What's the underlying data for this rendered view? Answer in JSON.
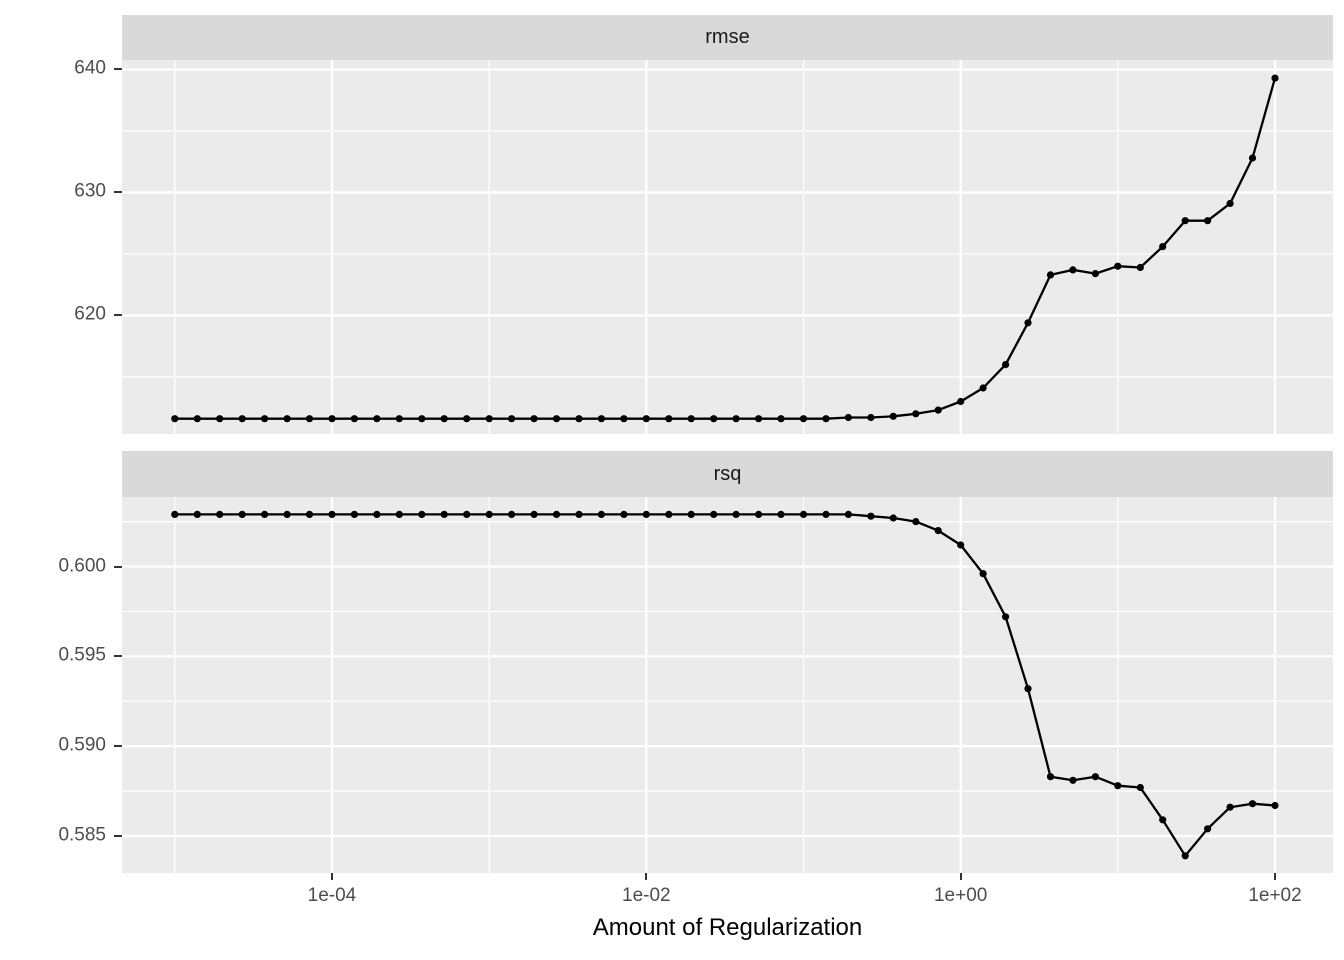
{
  "figure": {
    "kind": "ggplot2-faceted-line-chart",
    "x_axis": {
      "label": "Amount of Regularization",
      "scale": "log10",
      "tick_labels": [
        "1e-04",
        "1e-02",
        "1e+00",
        "1e+02"
      ],
      "tick_log10": [
        -4,
        -2,
        0,
        2
      ],
      "minor_log10": [
        -5,
        -3,
        -1,
        1
      ],
      "xlim_log10": [
        -5.336,
        2.369
      ]
    },
    "colors": {
      "background": "#FFFFFF",
      "panel_background": "#EBEBEB",
      "strip_background": "#D9D9D9",
      "gridline": "#FFFFFF",
      "series": "#000000",
      "tick_mark": "#333333",
      "tick_text": "#4D4D4D",
      "strip_text": "#1A1A1A",
      "axis_title_text": "#000000"
    },
    "legend": "none",
    "grid": "on"
  },
  "chart_data": [
    {
      "type": "line",
      "facet": "rmse",
      "x_transform": "log10",
      "x_log10": [
        -5,
        -4.8571,
        -4.7143,
        -4.5714,
        -4.4286,
        -4.2857,
        -4.1429,
        -4,
        -3.8571,
        -3.7143,
        -3.5714,
        -3.4286,
        -3.2857,
        -3.1429,
        -3,
        -2.8571,
        -2.7143,
        -2.5714,
        -2.4286,
        -2.2857,
        -2.1429,
        -2,
        -1.8571,
        -1.7143,
        -1.5714,
        -1.4286,
        -1.2857,
        -1.1429,
        -1,
        -0.8571,
        -0.7143,
        -0.5714,
        -0.4286,
        -0.2857,
        -0.1429,
        0,
        0.1429,
        0.2857,
        0.4286,
        0.5714,
        0.7143,
        0.8571,
        1,
        1.1429,
        1.2857,
        1.4286,
        1.5714,
        1.7143,
        1.8571,
        2
      ],
      "y": [
        611.6,
        611.6,
        611.6,
        611.6,
        611.6,
        611.6,
        611.6,
        611.6,
        611.6,
        611.6,
        611.6,
        611.6,
        611.6,
        611.6,
        611.6,
        611.6,
        611.6,
        611.6,
        611.6,
        611.6,
        611.6,
        611.6,
        611.6,
        611.6,
        611.6,
        611.6,
        611.6,
        611.6,
        611.6,
        611.6,
        611.7,
        611.7,
        611.8,
        612.0,
        612.3,
        613.0,
        614.1,
        616.0,
        619.4,
        623.3,
        623.7,
        623.4,
        624.0,
        623.9,
        625.6,
        627.7,
        627.7,
        629.1,
        632.8,
        639.3
      ],
      "ylim": [
        610.36,
        640.77
      ],
      "yticks": [
        620,
        630,
        640
      ],
      "ytick_labels": [
        "620",
        "630",
        "640"
      ],
      "yticks_minor": [
        615,
        625,
        635
      ]
    },
    {
      "type": "line",
      "facet": "rsq",
      "x_transform": "log10",
      "x_log10": [
        -5,
        -4.8571,
        -4.7143,
        -4.5714,
        -4.4286,
        -4.2857,
        -4.1429,
        -4,
        -3.8571,
        -3.7143,
        -3.5714,
        -3.4286,
        -3.2857,
        -3.1429,
        -3,
        -2.8571,
        -2.7143,
        -2.5714,
        -2.4286,
        -2.2857,
        -2.1429,
        -2,
        -1.8571,
        -1.7143,
        -1.5714,
        -1.4286,
        -1.2857,
        -1.1429,
        -1,
        -0.8571,
        -0.7143,
        -0.5714,
        -0.4286,
        -0.2857,
        -0.1429,
        0,
        0.1429,
        0.2857,
        0.4286,
        0.5714,
        0.7143,
        0.8571,
        1,
        1.1429,
        1.2857,
        1.4286,
        1.5714,
        1.7143,
        1.8571,
        2
      ],
      "y": [
        0.6029,
        0.6029,
        0.6029,
        0.6029,
        0.6029,
        0.6029,
        0.6029,
        0.6029,
        0.6029,
        0.6029,
        0.6029,
        0.6029,
        0.6029,
        0.6029,
        0.6029,
        0.6029,
        0.6029,
        0.6029,
        0.6029,
        0.6029,
        0.6029,
        0.6029,
        0.6029,
        0.6029,
        0.6029,
        0.6029,
        0.6029,
        0.6029,
        0.6029,
        0.6029,
        0.6029,
        0.6028,
        0.6027,
        0.6025,
        0.602,
        0.6012,
        0.5996,
        0.5972,
        0.5932,
        0.5883,
        0.5881,
        0.5883,
        0.5878,
        0.5877,
        0.5859,
        0.5839,
        0.5854,
        0.5866,
        0.5868,
        0.5867
      ],
      "ylim": [
        0.58294,
        0.60387
      ],
      "yticks": [
        0.585,
        0.59,
        0.595,
        0.6
      ],
      "ytick_labels": [
        "0.585",
        "0.590",
        "0.595",
        "0.600"
      ],
      "yticks_minor": [
        0.5875,
        0.5925,
        0.5975,
        0.6025
      ]
    }
  ]
}
